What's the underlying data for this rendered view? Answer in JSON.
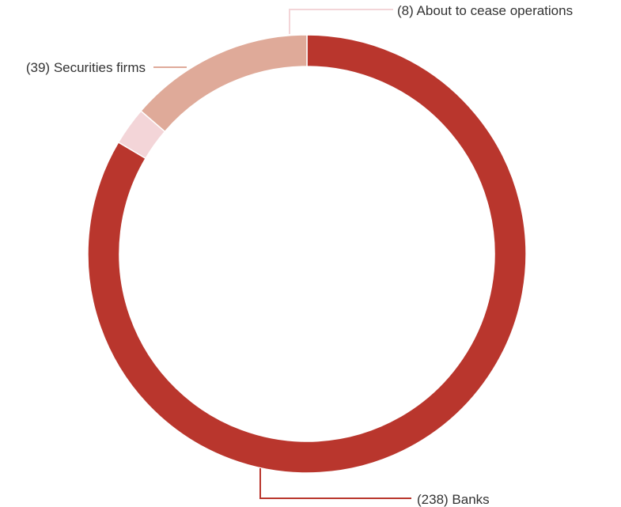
{
  "chart_data": {
    "type": "pie",
    "variant": "donut",
    "title": "",
    "categories": [
      "Banks",
      "About to cease operations",
      "Securities firms"
    ],
    "values": [
      238,
      8,
      39
    ],
    "labels": [
      "(238) Banks",
      "(8) About to cease operations",
      "(39) Securities firms"
    ],
    "colors": [
      "#b9362d",
      "#f3d5d8",
      "#dfaa99"
    ],
    "legend": "none",
    "start_angle": "top, clockwise"
  }
}
